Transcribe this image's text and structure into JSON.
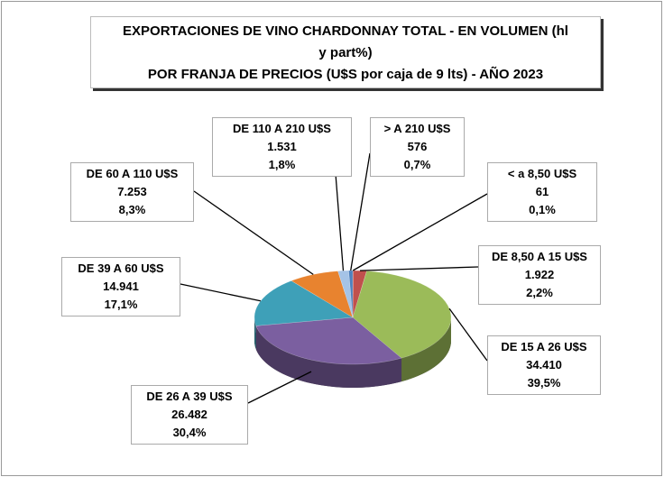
{
  "chart_data": {
    "type": "pie",
    "title": "EXPORTACIONES DE VINO CHARDONNAY TOTAL - EN VOLUMEN (hl y part%)",
    "subtitle": "POR FRANJA DE PRECIOS (U$S por caja de 9 lts) - AÑO 2023",
    "categories": [
      "< a 8,50 U$S",
      "DE 8,50 A 15 U$S",
      "DE 15 A 26 U$S",
      "DE 26 A 39 U$S",
      "DE 39 A 60 U$S",
      "DE 60 A 110 U$S",
      "DE 110 A 210 U$S",
      "> A 210 U$S"
    ],
    "values": [
      61,
      1922,
      34410,
      26482,
      14941,
      7253,
      1531,
      576
    ],
    "value_labels": [
      "61",
      "1.922",
      "34.410",
      "26.482",
      "14.941",
      "7.253",
      "1.531",
      "576"
    ],
    "shares": [
      0.1,
      2.2,
      39.5,
      30.4,
      17.1,
      8.3,
      1.8,
      0.7
    ],
    "share_labels": [
      "0,1%",
      "2,2%",
      "39,5%",
      "30,4%",
      "17,1%",
      "8,3%",
      "1,8%",
      "0,7%"
    ],
    "colors": [
      "#7f1f1c",
      "#c0504d",
      "#9bbb59",
      "#7b5fa0",
      "#3ea0b8",
      "#e8832f",
      "#a5c3e6",
      "#4f81bd"
    ]
  }
}
